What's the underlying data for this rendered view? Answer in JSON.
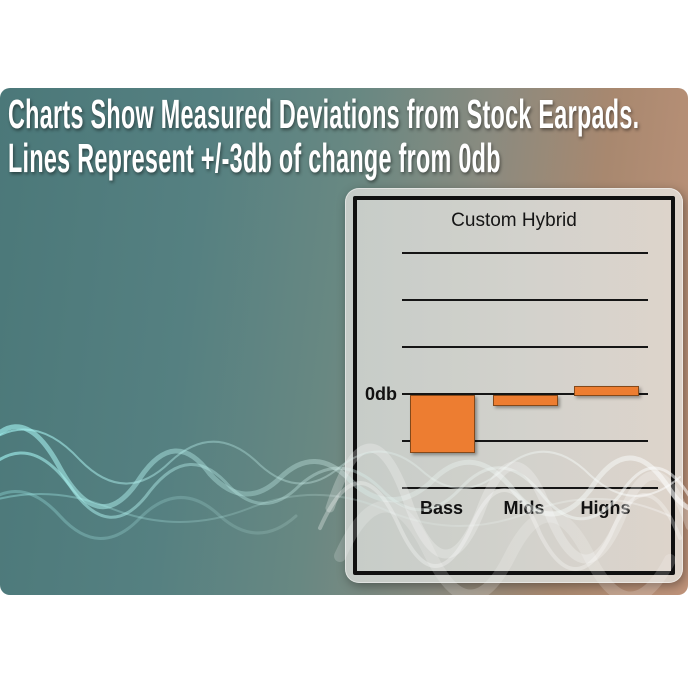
{
  "slide": {
    "heading_line1": "Charts Show Measured Deviations from Stock Earpads.",
    "heading_line2": "Lines Represent +/-3db of change from 0db",
    "colors": {
      "background_teal": "#4b7879",
      "background_brown": "#bf937a",
      "heading_text": "#ffffff",
      "wave_cyan": "#9ff0ee",
      "wave_white": "#ffffff"
    }
  },
  "chart_data": {
    "type": "bar",
    "title": "Custom Hybrid",
    "categories": [
      "Bass",
      "Mids",
      "Highs"
    ],
    "values": [
      -3.6,
      -0.6,
      0.5
    ],
    "unit": "db",
    "baseline_label": "0db",
    "gridline_step_db": 3,
    "ylim": [
      -6,
      9
    ],
    "grid": true,
    "legend_position": "none",
    "xlabel": "",
    "ylabel": "",
    "bar_color": "#ED7D31",
    "bar_border_color": "#84491A",
    "axis_color": "#151515",
    "panel_bg_left": "#c6ccc8",
    "panel_bg_right": "#ded4cb"
  }
}
